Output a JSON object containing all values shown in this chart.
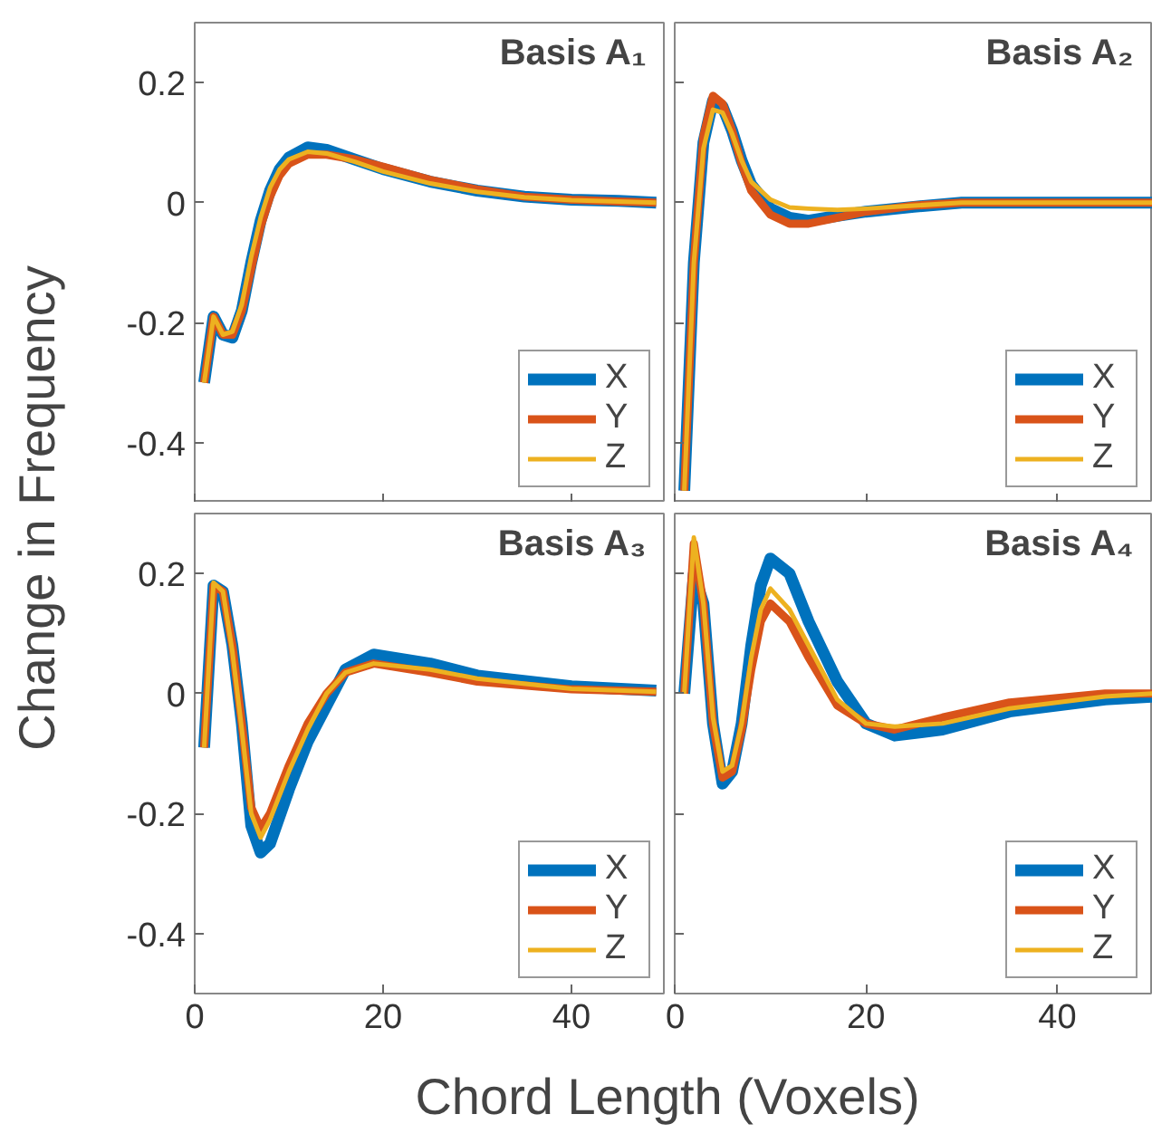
{
  "chart_data": [
    {
      "type": "line",
      "title": "Basis A₁",
      "ylabel": "Change in Frequency",
      "xlim": [
        0,
        50
      ],
      "ylim": [
        -0.5,
        0.3
      ],
      "xticks": [
        0,
        20,
        40
      ],
      "yticks": [
        -0.4,
        -0.2,
        0,
        0.2
      ],
      "tick_labels": "y",
      "legend": "bottom right",
      "grid": false,
      "x": [
        1,
        2,
        3,
        4,
        5,
        6,
        7,
        8,
        9,
        10,
        12,
        14,
        17,
        20,
        25,
        30,
        35,
        40,
        45,
        49
      ],
      "series": [
        {
          "name": "X",
          "color": "#0072bd",
          "values": [
            -0.3,
            -0.19,
            -0.22,
            -0.225,
            -0.18,
            -0.1,
            -0.03,
            0.02,
            0.055,
            0.075,
            0.092,
            0.088,
            0.072,
            0.056,
            0.035,
            0.02,
            0.01,
            0.005,
            0.003,
            0.0
          ]
        },
        {
          "name": "Y",
          "color": "#d95319",
          "values": [
            -0.3,
            -0.19,
            -0.22,
            -0.22,
            -0.18,
            -0.11,
            -0.04,
            0.01,
            0.045,
            0.065,
            0.08,
            0.08,
            0.072,
            0.06,
            0.038,
            0.022,
            0.01,
            0.005,
            0.002,
            0.0
          ]
        },
        {
          "name": "Z",
          "color": "#edb120",
          "values": [
            -0.3,
            -0.19,
            -0.22,
            -0.215,
            -0.17,
            -0.09,
            -0.025,
            0.025,
            0.055,
            0.072,
            0.085,
            0.082,
            0.068,
            0.052,
            0.032,
            0.018,
            0.009,
            0.004,
            0.002,
            0.0
          ]
        }
      ]
    },
    {
      "type": "line",
      "title": "Basis A₂",
      "xlim": [
        0,
        50
      ],
      "ylim": [
        -0.5,
        0.3
      ],
      "xticks": [
        0,
        20,
        40
      ],
      "yticks": [
        -0.4,
        -0.2,
        0,
        0.2
      ],
      "tick_labels": false,
      "legend": "bottom right",
      "grid": false,
      "x": [
        1,
        2,
        3,
        4,
        5,
        6,
        7,
        8,
        10,
        12,
        14,
        17,
        20,
        25,
        30,
        40,
        50
      ],
      "series": [
        {
          "name": "X",
          "color": "#0072bd",
          "values": [
            -0.48,
            -0.1,
            0.1,
            0.17,
            0.16,
            0.12,
            0.07,
            0.03,
            -0.01,
            -0.025,
            -0.03,
            -0.022,
            -0.015,
            -0.007,
            0.0,
            0.0,
            0.0
          ]
        },
        {
          "name": "Y",
          "color": "#d95319",
          "values": [
            -0.48,
            -0.1,
            0.11,
            0.178,
            0.165,
            0.12,
            0.065,
            0.02,
            -0.02,
            -0.035,
            -0.035,
            -0.025,
            -0.015,
            -0.005,
            0.0,
            0.0,
            0.0
          ]
        },
        {
          "name": "Z",
          "color": "#edb120",
          "values": [
            -0.48,
            -0.1,
            0.09,
            0.155,
            0.15,
            0.115,
            0.07,
            0.035,
            0.005,
            -0.008,
            -0.01,
            -0.012,
            -0.01,
            -0.005,
            0.0,
            0.0,
            0.0
          ]
        }
      ]
    },
    {
      "type": "line",
      "title": "Basis A₃",
      "xlabel": "Chord Length (Voxels)",
      "xlim": [
        0,
        50
      ],
      "ylim": [
        -0.5,
        0.3
      ],
      "xticks": [
        0,
        20,
        40
      ],
      "yticks": [
        -0.4,
        -0.2,
        0,
        0.2
      ],
      "legend": "bottom right",
      "grid": false,
      "x": [
        1,
        2,
        3,
        4,
        5,
        6,
        7,
        8,
        10,
        12,
        14,
        16,
        19,
        25,
        30,
        40,
        49
      ],
      "series": [
        {
          "name": "X",
          "color": "#0072bd",
          "values": [
            -0.09,
            0.18,
            0.17,
            0.08,
            -0.05,
            -0.22,
            -0.265,
            -0.25,
            -0.16,
            -0.08,
            -0.02,
            0.04,
            0.065,
            0.05,
            0.03,
            0.012,
            0.005
          ]
        },
        {
          "name": "Y",
          "color": "#d95319",
          "values": [
            -0.09,
            0.18,
            0.17,
            0.08,
            -0.05,
            -0.19,
            -0.225,
            -0.2,
            -0.12,
            -0.05,
            0.0,
            0.035,
            0.05,
            0.035,
            0.02,
            0.007,
            0.003
          ]
        },
        {
          "name": "Z",
          "color": "#edb120",
          "values": [
            -0.09,
            0.185,
            0.17,
            0.07,
            -0.06,
            -0.2,
            -0.24,
            -0.21,
            -0.13,
            -0.06,
            0.0,
            0.035,
            0.05,
            0.04,
            0.025,
            0.008,
            0.003
          ]
        }
      ]
    },
    {
      "type": "line",
      "title": "Basis A₄",
      "xlim": [
        0,
        50
      ],
      "ylim": [
        -0.5,
        0.3
      ],
      "xticks": [
        0,
        20,
        40
      ],
      "yticks": [
        -0.4,
        -0.2,
        0,
        0.2
      ],
      "tick_labels": "x",
      "legend": "bottom right",
      "grid": false,
      "x": [
        1,
        2,
        3,
        4,
        5,
        6,
        7,
        8,
        9,
        10,
        12,
        14,
        17,
        20,
        23,
        28,
        35,
        45,
        50
      ],
      "series": [
        {
          "name": "X",
          "color": "#0072bd",
          "values": [
            0.0,
            0.2,
            0.15,
            -0.05,
            -0.15,
            -0.13,
            -0.05,
            0.08,
            0.18,
            0.225,
            0.2,
            0.12,
            0.02,
            -0.05,
            -0.07,
            -0.06,
            -0.03,
            -0.01,
            -0.005
          ]
        },
        {
          "name": "Y",
          "color": "#d95319",
          "values": [
            0.0,
            0.25,
            0.15,
            -0.05,
            -0.14,
            -0.13,
            -0.06,
            0.04,
            0.12,
            0.15,
            0.12,
            0.06,
            -0.02,
            -0.05,
            -0.06,
            -0.04,
            -0.015,
            0.0,
            0.0
          ]
        },
        {
          "name": "Z",
          "color": "#edb120",
          "values": [
            0.0,
            0.26,
            0.15,
            -0.04,
            -0.13,
            -0.12,
            -0.05,
            0.06,
            0.14,
            0.175,
            0.14,
            0.08,
            -0.01,
            -0.05,
            -0.055,
            -0.05,
            -0.025,
            -0.005,
            0.0
          ]
        }
      ]
    }
  ]
}
